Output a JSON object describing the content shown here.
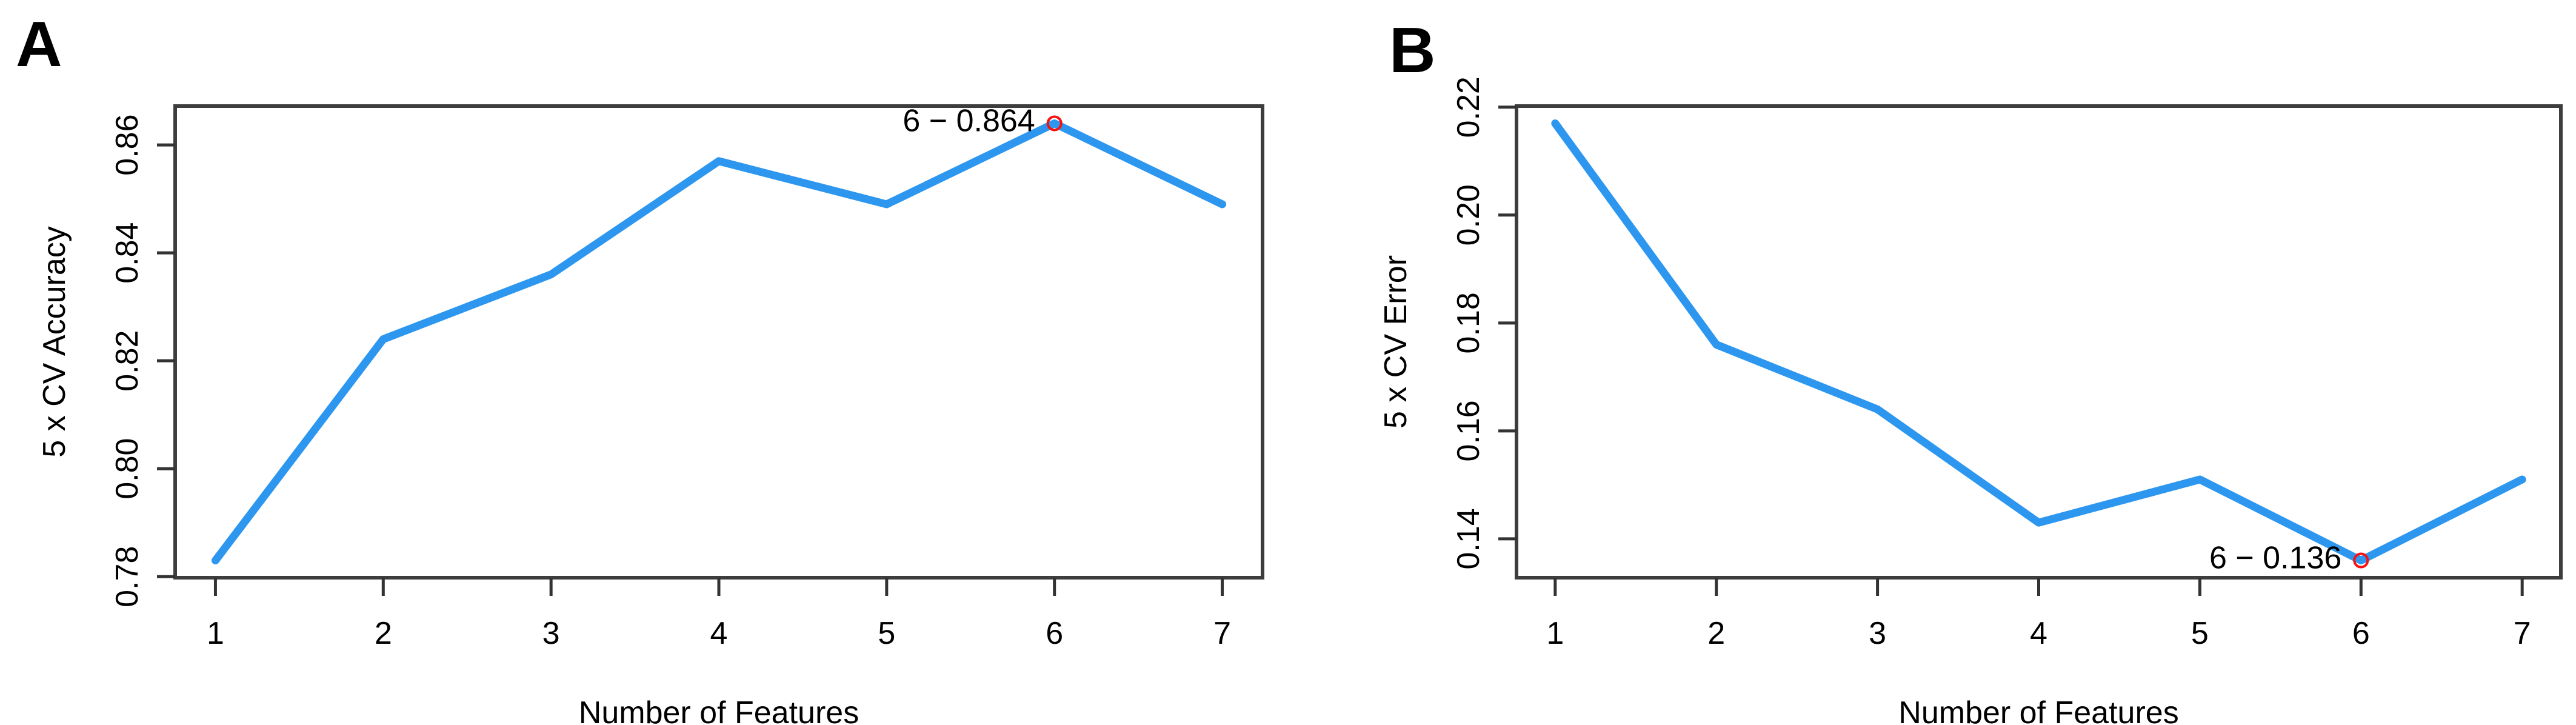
{
  "figure": {
    "background": "#ffffff",
    "text_color": "#000000",
    "frame_color": "#3d3d3d",
    "tick_color": "#333333"
  },
  "chart_data": [
    {
      "panel_letter": "A",
      "type": "line",
      "title": "",
      "x": [
        1,
        2,
        3,
        4,
        5,
        6,
        7
      ],
      "values": [
        0.783,
        0.824,
        0.836,
        0.857,
        0.849,
        0.864,
        0.849
      ],
      "xlabel": "Number of Features",
      "ylabel": "5 x CV Accuracy",
      "xticks": [
        1,
        2,
        3,
        4,
        5,
        6,
        7
      ],
      "xtick_labels": [
        "1",
        "2",
        "3",
        "4",
        "5",
        "6",
        "7"
      ],
      "yticks": [
        0.78,
        0.8,
        0.82,
        0.84,
        0.86
      ],
      "ytick_labels": [
        "0.78",
        "0.80",
        "0.82",
        "0.84",
        "0.86"
      ],
      "xlim": [
        0.76,
        7.24
      ],
      "ylim": [
        0.7798,
        0.8672
      ],
      "grid": false,
      "legend": "none",
      "line_color": "#2D97F0",
      "annotation": {
        "x": 6,
        "y": 0.864,
        "label": "6 − 0.864",
        "color": "#FB0F0C",
        "marker": "open-circle"
      }
    },
    {
      "panel_letter": "B",
      "type": "line",
      "title": "",
      "x": [
        1,
        2,
        3,
        4,
        5,
        6,
        7
      ],
      "values": [
        0.217,
        0.176,
        0.164,
        0.143,
        0.151,
        0.136,
        0.151
      ],
      "xlabel": "Number of Features",
      "ylabel": "5 x CV Error",
      "xticks": [
        1,
        2,
        3,
        4,
        5,
        6,
        7
      ],
      "xtick_labels": [
        "1",
        "2",
        "3",
        "4",
        "5",
        "6",
        "7"
      ],
      "yticks": [
        0.14,
        0.16,
        0.18,
        0.2,
        0.22
      ],
      "ytick_labels": [
        "0.14",
        "0.16",
        "0.18",
        "0.20",
        "0.22"
      ],
      "xlim": [
        0.76,
        7.24
      ],
      "ylim": [
        0.1328,
        0.2202
      ],
      "grid": false,
      "legend": "none",
      "line_color": "#2D97F0",
      "annotation": {
        "x": 6,
        "y": 0.136,
        "label": "6 − 0.136",
        "color": "#FB0F0C",
        "marker": "open-circle"
      }
    }
  ]
}
